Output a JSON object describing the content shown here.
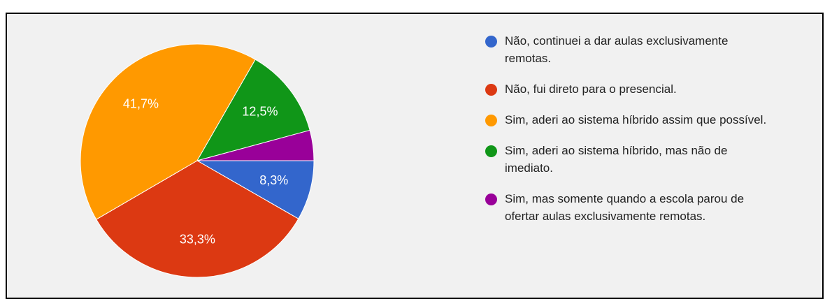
{
  "chart_data": {
    "type": "pie",
    "categories": [
      "Não, continuei a dar aulas exclusivamente remotas.",
      "Não, fui direto para o presencial.",
      "Sim, aderi ao sistema híbrido assim que possível.",
      "Sim, aderi ao sistema híbrido, mas não de imediato.",
      "Sim, mas somente quando a escola parou de ofertar aulas exclusivamente remotas."
    ],
    "values": [
      8.3,
      33.3,
      41.7,
      12.5,
      4.2
    ],
    "value_labels": [
      "8,3%",
      "33,3%",
      "41,7%",
      "12,5%",
      null
    ],
    "colors": [
      "#3366cc",
      "#dc3912",
      "#ff9900",
      "#109618",
      "#990099"
    ],
    "legend": "right"
  }
}
